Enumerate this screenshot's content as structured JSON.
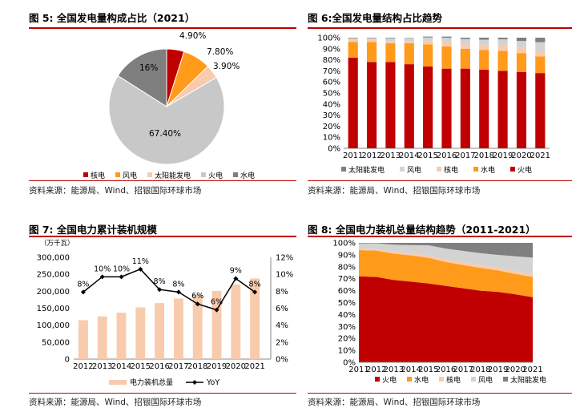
{
  "charts": [
    {
      "title": "图 5: 全国发电量构成占比（2021）",
      "source": "资料来源：能源局、Wind、招银国际环球市场"
    },
    {
      "title": "图 6:全国发电量结构占比趋势",
      "source": "资料来源：能源局、Wind、招银国际环球市场"
    },
    {
      "title": "图 7: 全国电力累计装机规模",
      "source": "资料来源：能源局、Wind、招银国际环球市场"
    },
    {
      "title": "图 8: 全国电力装机总量结构趋势（2011-2021）",
      "source": "资料来源：能源局、Wind、招银国际环球市场"
    }
  ],
  "chart_data": [
    {
      "type": "pie",
      "slices": [
        {
          "name": "核电",
          "value": 4.9,
          "label": "4.90%",
          "color": "#c00000"
        },
        {
          "name": "风电",
          "value": 7.8,
          "label": "7.80%",
          "color": "#ff9a1a"
        },
        {
          "name": "太阳能发电",
          "value": 3.9,
          "label": "3.90%",
          "color": "#f8cbad"
        },
        {
          "name": "火电",
          "value": 67.4,
          "label": "67.40%",
          "color": "#c8c8c8"
        },
        {
          "name": "水电",
          "value": 16.0,
          "label": "16%",
          "color": "#7f7f7f"
        }
      ],
      "legend": [
        "核电",
        "风电",
        "太阳能发电",
        "火电",
        "水电"
      ],
      "legend_position": "bottom"
    },
    {
      "type": "bar",
      "stacked": true,
      "categories": [
        "2011",
        "2012",
        "2013",
        "2014",
        "2015",
        "2016",
        "2017",
        "2018",
        "2019",
        "2020",
        "2021"
      ],
      "series": [
        {
          "name": "火电",
          "color": "#c00000",
          "values": [
            82,
            78,
            78,
            76,
            74,
            72,
            72,
            71,
            70,
            69,
            68
          ]
        },
        {
          "name": "水电",
          "color": "#ff9a1a",
          "values": [
            14,
            18,
            17,
            19,
            20,
            20,
            18,
            18,
            18,
            17,
            15
          ]
        },
        {
          "name": "核电",
          "color": "#f8cbad",
          "values": [
            2,
            2,
            2,
            2,
            3,
            4,
            4,
            4,
            5,
            5,
            5
          ]
        },
        {
          "name": "风电",
          "color": "#d3d3d3",
          "values": [
            1.5,
            1.6,
            2.5,
            2.8,
            3.2,
            4,
            4.8,
            5.2,
            5.5,
            6,
            8
          ]
        },
        {
          "name": "太阳能发电",
          "color": "#7f7f7f",
          "values": [
            0.5,
            0.4,
            0.5,
            0.2,
            0.8,
            1,
            1.2,
            1.8,
            1.5,
            3,
            4
          ]
        }
      ],
      "legend": [
        "太阳能发电",
        "风电",
        "核电",
        "水电",
        "火电"
      ],
      "yticks": [
        "0%",
        "10%",
        "20%",
        "30%",
        "40%",
        "50%",
        "60%",
        "70%",
        "80%",
        "90%",
        "100%"
      ],
      "ylim": [
        0,
        100
      ],
      "legend_position": "bottom"
    },
    {
      "type": "bar",
      "unit": "（万千瓦）",
      "categories": [
        "2012",
        "2013",
        "2014",
        "2015",
        "2016",
        "2017",
        "2018",
        "2019",
        "2020",
        "2021"
      ],
      "series": [
        {
          "name": "电力装机总量",
          "type": "bar",
          "color": "#f8cbad",
          "values": [
            114700,
            125800,
            137000,
            152500,
            165000,
            178500,
            190000,
            201000,
            220000,
            237700
          ]
        },
        {
          "name": "YoY",
          "type": "line",
          "color": "#000000",
          "axis": "right",
          "values": [
            7.9,
            9.7,
            9.7,
            10.6,
            8.2,
            7.9,
            6.5,
            5.8,
            9.5,
            7.9
          ],
          "labels": [
            "8%",
            "10%",
            "10%",
            "11%",
            "8%",
            "8%",
            "6%",
            "6%",
            "9%",
            "8%"
          ]
        }
      ],
      "yticks_left": [
        "0",
        "50,000",
        "100,000",
        "150,000",
        "200,000",
        "250,000",
        "300,000"
      ],
      "ylim_left": [
        0,
        300000
      ],
      "yticks_right": [
        "0%",
        "2%",
        "4%",
        "6%",
        "8%",
        "10%",
        "12%"
      ],
      "ylim_right": [
        0,
        12
      ],
      "legend": [
        "电力装机总量",
        "YoY"
      ],
      "legend_position": "bottom"
    },
    {
      "type": "area",
      "stacked": true,
      "x": [
        "2011",
        "2012",
        "2013",
        "2014",
        "2015",
        "2016",
        "2017",
        "2018",
        "2019",
        "2020",
        "2021"
      ],
      "series": [
        {
          "name": "火电",
          "color": "#c00000",
          "values": [
            72,
            71.5,
            69,
            67.5,
            66,
            64,
            62,
            60,
            59,
            57,
            54.5
          ]
        },
        {
          "name": "水电",
          "color": "#ff9a1a",
          "values": [
            22,
            22,
            22,
            22,
            21.5,
            20,
            19.5,
            19,
            18,
            17,
            17
          ]
        },
        {
          "name": "核电",
          "color": "#f8cbad",
          "values": [
            1,
            1.2,
            1.5,
            1.6,
            2,
            2.2,
            2.3,
            2.4,
            2.4,
            2.3,
            2.2
          ]
        },
        {
          "name": "风电",
          "color": "#d3d3d3",
          "values": [
            4.5,
            5,
            6,
            7,
            8.5,
            9,
            9.5,
            10,
            10.5,
            12.5,
            14
          ]
        },
        {
          "name": "太阳能发电",
          "color": "#7f7f7f",
          "values": [
            0.5,
            0.3,
            1.5,
            1.9,
            2,
            4.8,
            6.7,
            8.6,
            10.1,
            11.2,
            12.3
          ]
        }
      ],
      "legend": [
        "火电",
        "水电",
        "核电",
        "风电",
        "太阳能发电"
      ],
      "yticks": [
        "0%",
        "10%",
        "20%",
        "30%",
        "40%",
        "50%",
        "60%",
        "70%",
        "80%",
        "90%",
        "100%"
      ],
      "ylim": [
        0,
        100
      ],
      "legend_position": "bottom"
    }
  ]
}
